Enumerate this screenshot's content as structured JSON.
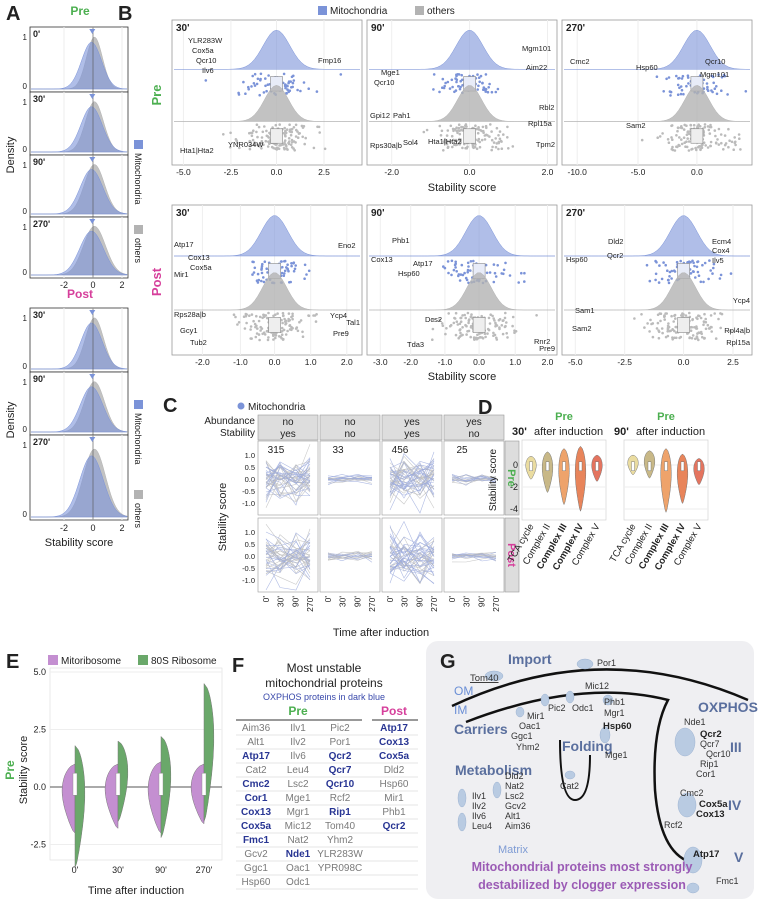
{
  "panel_labels": [
    "A",
    "B",
    "C",
    "D",
    "E",
    "F",
    "G"
  ],
  "panel_a": {
    "title_pre": "Pre",
    "title_post": "Post",
    "pre_panels": [
      "0'",
      "30'",
      "90'",
      "270'"
    ],
    "post_panels": [
      "30'",
      "90'",
      "270'"
    ],
    "y_axis_label": "Density",
    "y_ticks": [
      0,
      1
    ],
    "x_ticks": [
      -2,
      0,
      2
    ],
    "x_axis_label": "Stability score",
    "legend": [
      "Mitochondria",
      "others"
    ]
  },
  "panel_b": {
    "legend": [
      "Mitochondria",
      "others"
    ],
    "row_labels": [
      "Pre",
      "Post"
    ],
    "x_axis_label": "Stability score",
    "subplots": [
      {
        "time": "30'",
        "x_ticks": [
          "-5.0",
          "-2.5",
          "0.0",
          "2.5"
        ],
        "mito_genes": [
          "YLR283W",
          "Cox5a",
          "Qcr10",
          "Ilv6",
          "Fmp16"
        ],
        "other_genes": [
          "Hta1|Hta2",
          "YNR034W"
        ]
      },
      {
        "time": "90'",
        "x_ticks": [
          "-2.0",
          "0.0",
          "2.0"
        ],
        "mito_genes": [
          "Mge1",
          "Qcr10",
          "Mgm101",
          "Aim22"
        ],
        "other_genes": [
          "Gpi12",
          "Pah1",
          "Rps30a|b",
          "Sol4",
          "Hta1|Hta2",
          "Rbl2",
          "Rpl15a",
          "Tpm2"
        ]
      },
      {
        "time": "270'",
        "x_ticks": [
          "-10.0",
          "-5.0",
          "0.0"
        ],
        "mito_genes": [
          "Cmc2",
          "Hsp60",
          "Qcr10",
          "Mgm101"
        ],
        "other_genes": [
          "Sam2"
        ]
      },
      {
        "time": "30'",
        "x_ticks": [
          "-2.0",
          "-1.0",
          "0.0",
          "1.0",
          "2.0"
        ],
        "mito_genes": [
          "Atp17",
          "Mir1",
          "Cox13",
          "Cox5a",
          "Eno2"
        ],
        "other_genes": [
          "Rps28a|b",
          "Gcy1",
          "Tub2",
          "Ycp4",
          "Tal1",
          "Pre9"
        ]
      },
      {
        "time": "90'",
        "x_ticks": [
          "-3.0",
          "-2.0",
          "-1.0",
          "0.0",
          "1.0",
          "2.0"
        ],
        "mito_genes": [
          "Phb1",
          "Cox13",
          "Atp17",
          "Hsp60"
        ],
        "other_genes": [
          "Dcs2",
          "Tda3",
          "Rnr2",
          "Pre9"
        ]
      },
      {
        "time": "270'",
        "x_ticks": [
          "-5.0",
          "-2.5",
          "0.0",
          "2.5"
        ],
        "mito_genes": [
          "Hsp60",
          "Dld2",
          "Qcr2",
          "Ecm4",
          "Cox4",
          "Ilv5"
        ],
        "other_genes": [
          "Sam1",
          "Sam2",
          "Ycp4",
          "Rpl4a|b",
          "Rpl15a"
        ]
      }
    ]
  },
  "panel_c": {
    "legend": "Mitochondria",
    "header_labels": [
      "Abundance",
      "Stability"
    ],
    "columns": [
      {
        "abundance": "no",
        "stability": "yes",
        "count": 315
      },
      {
        "abundance": "no",
        "stability": "no",
        "count": 33
      },
      {
        "abundance": "yes",
        "stability": "yes",
        "count": 456
      },
      {
        "abundance": "yes",
        "stability": "no",
        "count": 25
      }
    ],
    "row_labels": [
      "Pre",
      "Post"
    ],
    "y_axis_label": "Stability score",
    "y_ticks": [
      "1.0",
      "0.5",
      "0.0",
      "-0.5",
      "-1.0"
    ],
    "x_ticks": [
      "0'",
      "30'",
      "90'",
      "270'"
    ],
    "x_axis_label": "Time after induction"
  },
  "panel_d": {
    "subplots": [
      {
        "row": "Pre",
        "time": "30'",
        "title_rest": "after induction"
      },
      {
        "row": "Pre",
        "time": "90'",
        "title_rest": "after induction"
      }
    ],
    "categories": [
      "TCA cycle",
      "Complex II",
      "Complex III",
      "Complex IV",
      "Complex V"
    ],
    "y_axis_label": "Stability score",
    "y_ticks": [
      0,
      -2,
      -4
    ]
  },
  "panel_e": {
    "legend": [
      "Mitoribosome",
      "80S Ribosome"
    ],
    "row_label": "Pre",
    "y_axis_label": "Stability score",
    "y_ticks": [
      "5.0",
      "2.5",
      "0.0",
      "-2.5"
    ],
    "x_ticks": [
      "0'",
      "30'",
      "90'",
      "270'"
    ],
    "x_axis_label": "Time after induction"
  },
  "panel_f": {
    "title_lines": [
      "Most unstable",
      "mitochondrial proteins"
    ],
    "subtitle": "OXPHOS proteins in dark blue",
    "headers": [
      "Pre",
      "Post"
    ],
    "rows": [
      [
        "Aim36",
        "Ilv1",
        "Pic2",
        {
          "text": "Atp17",
          "oxphos": true
        }
      ],
      [
        "Alt1",
        "Ilv2",
        "Por1",
        {
          "text": "Cox13",
          "oxphos": true
        }
      ],
      [
        {
          "text": "Atp17",
          "oxphos": true
        },
        "Ilv6",
        {
          "text": "Qcr2",
          "oxphos": true
        },
        {
          "text": "Cox5a",
          "oxphos": true
        }
      ],
      [
        "Cat2",
        "Leu4",
        {
          "text": "Qcr7",
          "oxphos": true
        },
        "Dld2"
      ],
      [
        {
          "text": "Cmc2",
          "oxphos": true
        },
        "Lsc2",
        {
          "text": "Qcr10",
          "oxphos": true
        },
        "Hsp60"
      ],
      [
        {
          "text": "Cor1",
          "oxphos": true
        },
        "Mge1",
        "Rcf2",
        "Mir1"
      ],
      [
        {
          "text": "Cox13",
          "oxphos": true
        },
        "Mgr1",
        {
          "text": "Rip1",
          "oxphos": true
        },
        "Phb1"
      ],
      [
        {
          "text": "Cox5a",
          "oxphos": true
        },
        "Mic12",
        "Tom40",
        {
          "text": "Qcr2",
          "oxphos": true
        }
      ],
      [
        {
          "text": "Fmc1",
          "oxphos": true
        },
        "Nat2",
        "Yhm2"
      ],
      [
        "Gcv2",
        {
          "text": "Nde1",
          "oxphos": true
        },
        "YLR283W"
      ],
      [
        "Ggc1",
        "Oac1",
        "YPR098C"
      ],
      [
        "Hsp60",
        "Odc1"
      ]
    ]
  },
  "panel_g": {
    "labels": [
      "Import",
      "Tom40",
      "Por1",
      "OM",
      "IM",
      "Mic12",
      "Carriers",
      "Pic2",
      "Odc1",
      "Phb1",
      "Mgr1",
      "Mir1",
      "Oac1",
      "Ggc1",
      "Yhm2",
      "Hsp60",
      "Folding",
      "Mge1",
      "Metabolism",
      "Dld2",
      "Nat2",
      "Lsc2",
      "Gcv2",
      "Alt1",
      "Aim36",
      "Ilv1",
      "Ilv2",
      "Ilv6",
      "Leu4",
      "Cat2",
      "Matrix",
      "OXPHOS",
      "Nde1",
      "Qcr2",
      "Qcr7",
      "Qcr10",
      "Rip1",
      "Cor1",
      "Cmc2",
      "Cox5a",
      "Cox13",
      "Rcf2",
      "Atp17",
      "Fmc1",
      "III",
      "IV",
      "V"
    ],
    "caption_lines": [
      "Mitochondrial proteins most strongly",
      "destabilized by clogger expression"
    ]
  }
}
